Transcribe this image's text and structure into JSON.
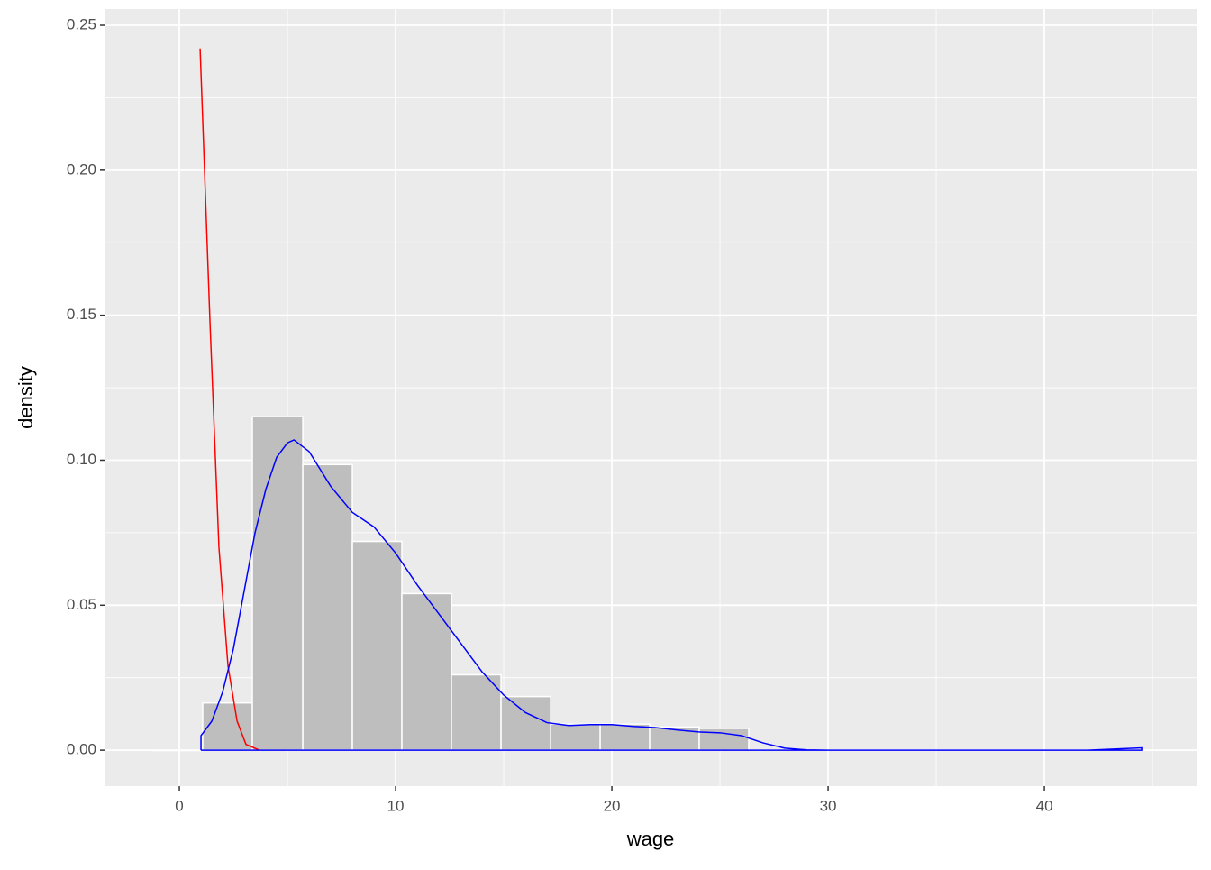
{
  "chart_data": {
    "type": "histogram",
    "x_label": "wage",
    "y_label": "density",
    "bins": [
      -1.21,
      1.08,
      3.375,
      5.71,
      8.0,
      10.29,
      12.58,
      14.875,
      17.17,
      19.46,
      21.75,
      24.04,
      26.33
    ],
    "values": [
      0,
      0.0163,
      0.115,
      0.0985,
      0.072,
      0.054,
      0.026,
      0.0185,
      0.009,
      0.009,
      0.008,
      0.0075
    ],
    "color": "#bebebe",
    "lines": [
      {
        "color": "#ff0000",
        "x": [
          0.96,
          1.42,
          1.83,
          2.25,
          2.67,
          3.08,
          3.7
        ],
        "values": [
          0.242,
          0.147,
          0.07,
          0.029,
          0.01,
          0.002,
          0
        ]
      },
      {
        "color": "#0000ff",
        "x": [
          1,
          1,
          1.5,
          2,
          2.5,
          3,
          3.5,
          4,
          4.5,
          5,
          5.3,
          6,
          7,
          8,
          9,
          10,
          11,
          12,
          13,
          14,
          15,
          16,
          17,
          18,
          19,
          20,
          21,
          22,
          23,
          24,
          25,
          26,
          27,
          28,
          29,
          30,
          42,
          44.5,
          44.5,
          1
        ],
        "values": [
          0,
          0.005,
          0.01,
          0.02,
          0.035,
          0.055,
          0.075,
          0.09,
          0.101,
          0.106,
          0.107,
          0.103,
          0.091,
          0.082,
          0.077,
          0.068,
          0.057,
          0.047,
          0.037,
          0.027,
          0.019,
          0.013,
          0.0095,
          0.0085,
          0.0088,
          0.0088,
          0.0082,
          0.0078,
          0.007,
          0.0063,
          0.006,
          0.005,
          0.0025,
          0.0007,
          0.0001,
          0,
          0,
          0.0008,
          0,
          0
        ]
      }
    ],
    "xlim": [
      -3.46,
      47.08
    ],
    "ylim": [
      -0.0124,
      0.2556
    ],
    "xticks": [
      0,
      10,
      20,
      30,
      40
    ],
    "yticks": [
      {
        "value": 0,
        "label": "0.00"
      },
      {
        "value": 0.05,
        "label": "0.05"
      },
      {
        "value": 0.1,
        "label": "0.10"
      },
      {
        "value": 0.15,
        "label": "0.15"
      },
      {
        "value": 0.2,
        "label": "0.20"
      },
      {
        "value": 0.25,
        "label": "0.25"
      }
    ],
    "x_minor_ticks": [
      5,
      15,
      25,
      35,
      45
    ],
    "y_minor_ticks": [
      0.025,
      0.075,
      0.125,
      0.175,
      0.225
    ],
    "grid": true
  }
}
